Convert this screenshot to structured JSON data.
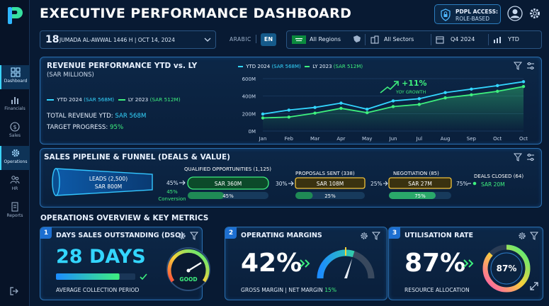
{
  "app": {
    "title": "EXECUTIVE PERFORMANCE DASHBOARD",
    "access_title": "PDPL ACCESS:",
    "access_value": "ROLE-BASED"
  },
  "nav": {
    "items": [
      {
        "label": "Dashboard",
        "icon": "grid-icon",
        "active": true
      },
      {
        "label": "Financials",
        "icon": "bar-chart-icon",
        "active": false
      },
      {
        "label": "Sales",
        "icon": "dollar-icon",
        "active": false
      },
      {
        "label": "Operations",
        "icon": "gear-icon",
        "active": true
      },
      {
        "label": "HR",
        "icon": "people-icon",
        "active": false
      },
      {
        "label": "Reports",
        "icon": "report-icon",
        "active": false
      }
    ]
  },
  "datebar": {
    "day": "18",
    "text": "JUMADA AL-AWWAL 1446 H  |  OCT 14, 2024",
    "lang_label": "ARABIC",
    "lang_active": "EN"
  },
  "filters": {
    "region": "All Regions",
    "sector": "All Sectors",
    "period": "Q4 2024",
    "range": "YTD"
  },
  "revenue": {
    "title": "REVENUE PERFORMANCE YTD vs. LY",
    "subtitle": "(SAR MILLIONS)",
    "legend_ytd_label": "YTD 2024",
    "legend_ytd_value": "(SAR 568M)",
    "legend_ly_label": "LY 2023",
    "legend_ly_value": "(SAR 512M)",
    "total_label": "TOTAL REVENUE YTD:",
    "total_value": "SAR 568M",
    "target_label": "TARGET PROGRESS:",
    "target_value": "95%",
    "growth": "+11%",
    "growth_label": "YOY GROWTH"
  },
  "chart_data": {
    "type": "line",
    "categories": [
      "Jan",
      "Feb",
      "Mar",
      "Apr",
      "May",
      "Jun",
      "Jul",
      "Aug",
      "Sep",
      "Oct",
      "Oct"
    ],
    "series": [
      {
        "name": "YTD 2024 (SAR 568M)",
        "values": [
          195,
          240,
          270,
          320,
          250,
          345,
          370,
          440,
          480,
          520,
          565
        ]
      },
      {
        "name": "LY 2023 (SAR 512M)",
        "values": [
          150,
          160,
          205,
          260,
          210,
          280,
          305,
          380,
          415,
          455,
          510
        ]
      }
    ],
    "yticks": [
      "0M",
      "200M",
      "400M",
      "600M"
    ],
    "ylim": [
      0,
      600
    ],
    "colors": {
      "ytd": "#33d6ff",
      "ly": "#3ef07e"
    }
  },
  "pipeline": {
    "title": "SALES PIPELINE & FUNNEL (DEALS & VALUE)",
    "leads_label": "LEADS (2,500)",
    "leads_value": "SAR 800M",
    "conv_pct": "45%",
    "conv_label_pct": "45%",
    "conv_label": "Conversion",
    "qualified_label": "QUALIFIED OPPORTUNITIES (1,125)",
    "qualified_value": "SAR 360M",
    "qualified_progress": "45%",
    "qualified_progress_value": 0.45,
    "to_proposal": "30%",
    "proposals_label": "PROPOSALS SENT (338)",
    "proposals_value": "SAR 108M",
    "proposals_progress": "25%",
    "proposals_progress_value": 0.25,
    "to_negotiation": "25%",
    "negotiation_label": "NEGOTIATION (85)",
    "negotiation_value": "SAR 27M",
    "negotiation_progress": "75%",
    "negotiation_progress_value": 0.75,
    "to_closed": "75%",
    "closed_label": "DEALS CLOSED (64)",
    "closed_value": "SAR 20M"
  },
  "ops": {
    "title": "OPERATIONS OVERVIEW & KEY METRICS",
    "dso": {
      "num": "1",
      "title": "DAYS SALES OUTSTANDING (DSO)",
      "value": "28 DAYS",
      "sub": "AVERAGE COLLECTION PERIOD",
      "gauge_label": "GOOD",
      "bar_fill": 0.8
    },
    "margins": {
      "num": "2",
      "title": "OPERATING MARGINS",
      "value": "42%",
      "sub_a": "GROSS MARGIN | NET MARGIN",
      "sub_b": "15%",
      "gauge_level": 0.6
    },
    "util": {
      "num": "3",
      "title": "UTILISATION RATE",
      "value": "87%",
      "ring_value": "87%",
      "sub": "RESOURCE ALLOCATION",
      "ring_level": 0.87
    }
  }
}
